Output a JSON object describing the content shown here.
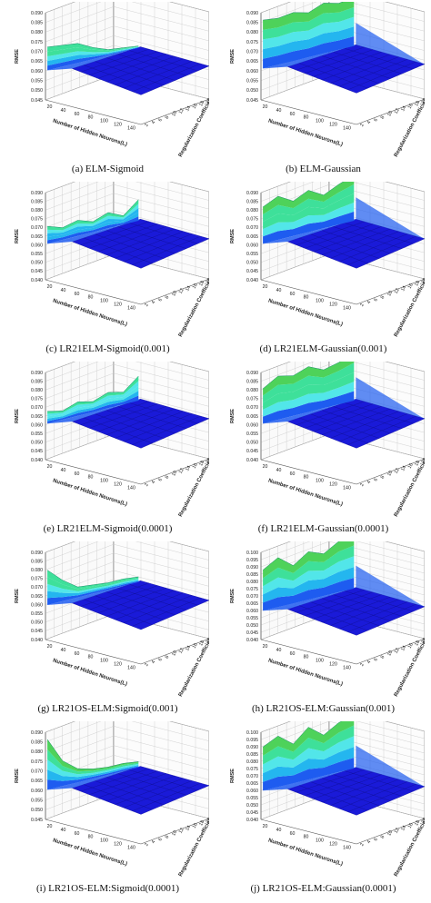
{
  "figure": {
    "panels": [
      {
        "id": "a",
        "caption": "(a) ELM-Sigmoid"
      },
      {
        "id": "b",
        "caption": "(b) ELM-Gaussian"
      },
      {
        "id": "c",
        "caption": "(c) LR21ELM-Sigmoid(0.001)"
      },
      {
        "id": "d",
        "caption": "(d) LR21ELM-Gaussian(0.001)"
      },
      {
        "id": "e",
        "caption": "(e) LR21ELM-Sigmoid(0.0001)"
      },
      {
        "id": "f",
        "caption": "(f) LR21ELM-Gaussian(0.0001)"
      },
      {
        "id": "g",
        "caption": "(g) LR21OS-ELM:Sigmoid(0.001)"
      },
      {
        "id": "h",
        "caption": "(h) LR21OS-ELM:Gaussian(0.001)"
      },
      {
        "id": "i",
        "caption": "(i) LR21OS-ELM:Sigmoid(0.0001)"
      },
      {
        "id": "j",
        "caption": "(j) LR21OS-ELM:Gaussian(0.0001)"
      }
    ]
  },
  "chart_data": [
    {
      "type": "surface",
      "kind": "sigmoid",
      "zlabel": "RMSE",
      "xlabel": "Number of Hidden Neurons(L)",
      "ylabel": "Regularization Coefficient(L)",
      "x_ticks": [
        "20",
        "40",
        "60",
        "80",
        "100",
        "120",
        "140"
      ],
      "y_ticks": [
        "2",
        "4",
        "6",
        "8",
        "10",
        "12",
        "14",
        "16",
        "18",
        "20"
      ],
      "z_ticks": [
        "0.045",
        "0.050",
        "0.055",
        "0.060",
        "0.065",
        "0.070",
        "0.075",
        "0.080",
        "0.085",
        "0.090"
      ],
      "zlim": [
        0.045,
        0.09
      ],
      "x_values": [
        20,
        40,
        60,
        80,
        100,
        120,
        140
      ],
      "profile": [
        0.074,
        0.073,
        0.072,
        0.068,
        0.065,
        0.064,
        0.063
      ],
      "peak": 0.084,
      "floor": 0.062
    },
    {
      "type": "surface",
      "kind": "gaussian",
      "zlabel": "RMSE",
      "xlabel": "Number of Hidden Neurons(L)",
      "ylabel": "Regularization Coefficient(L)",
      "x_ticks": [
        "20",
        "40",
        "60",
        "80",
        "100",
        "120",
        "140"
      ],
      "y_ticks": [
        "2",
        "4",
        "6",
        "8",
        "10",
        "12",
        "14",
        "16",
        "18",
        "20"
      ],
      "z_ticks": [
        "0.045",
        "0.050",
        "0.055",
        "0.060",
        "0.065",
        "0.070",
        "0.075",
        "0.080",
        "0.085",
        "0.090"
      ],
      "zlim": [
        0.045,
        0.09
      ],
      "x_values": [
        20,
        40,
        60,
        80,
        100,
        120,
        140
      ],
      "profile": [
        0.088,
        0.087,
        0.088,
        0.086,
        0.089,
        0.087,
        0.088
      ],
      "peak": 0.09,
      "floor": 0.063
    },
    {
      "type": "surface",
      "kind": "sigmoid",
      "zlabel": "RMSE",
      "xlabel": "Number of Hidden Neurons(L)",
      "ylabel": "Regularization Coefficient(L)",
      "x_ticks": [
        "20",
        "40",
        "60",
        "80",
        "100",
        "120",
        "140"
      ],
      "y_ticks": [
        "2",
        "4",
        "6",
        "8",
        "10",
        "12",
        "14",
        "16",
        "18",
        "20"
      ],
      "z_ticks": [
        "0.040",
        "0.045",
        "0.050",
        "0.055",
        "0.060",
        "0.065",
        "0.070",
        "0.075",
        "0.080",
        "0.085",
        "0.090"
      ],
      "zlim": [
        0.04,
        0.09
      ],
      "x_values": [
        20,
        40,
        60,
        80,
        100,
        120,
        140
      ],
      "profile": [
        0.073,
        0.07,
        0.072,
        0.069,
        0.072,
        0.068,
        0.075
      ],
      "peak": 0.078,
      "floor": 0.063
    },
    {
      "type": "surface",
      "kind": "gaussian",
      "zlabel": "RMSE",
      "xlabel": "Number of Hidden Neurons(L)",
      "ylabel": "Regularization Coefficient(L)",
      "x_ticks": [
        "20",
        "40",
        "60",
        "80",
        "100",
        "120",
        "140"
      ],
      "y_ticks": [
        "2",
        "4",
        "6",
        "8",
        "10",
        "12",
        "14",
        "16",
        "18",
        "20"
      ],
      "z_ticks": [
        "0.040",
        "0.045",
        "0.050",
        "0.055",
        "0.060",
        "0.065",
        "0.070",
        "0.075",
        "0.080",
        "0.085",
        "0.090"
      ],
      "zlim": [
        0.04,
        0.09
      ],
      "x_values": [
        20,
        40,
        60,
        80,
        100,
        120,
        140
      ],
      "profile": [
        0.084,
        0.088,
        0.083,
        0.087,
        0.082,
        0.086,
        0.089
      ],
      "peak": 0.09,
      "floor": 0.063
    },
    {
      "type": "surface",
      "kind": "sigmoid",
      "zlabel": "RMSE",
      "xlabel": "Number of Hidden Neurons(L)",
      "ylabel": "Regularization Coefficient(L)",
      "x_ticks": [
        "20",
        "40",
        "60",
        "80",
        "100",
        "120",
        "140"
      ],
      "y_ticks": [
        "2",
        "4",
        "6",
        "8",
        "10",
        "12",
        "14",
        "16",
        "18",
        "20"
      ],
      "z_ticks": [
        "0.040",
        "0.045",
        "0.050",
        "0.055",
        "0.060",
        "0.065",
        "0.070",
        "0.075",
        "0.080",
        "0.085",
        "0.090"
      ],
      "zlim": [
        0.04,
        0.09
      ],
      "x_values": [
        20,
        40,
        60,
        80,
        100,
        120,
        140
      ],
      "profile": [
        0.07,
        0.068,
        0.071,
        0.069,
        0.072,
        0.07,
        0.077
      ],
      "peak": 0.079,
      "floor": 0.063
    },
    {
      "type": "surface",
      "kind": "gaussian",
      "zlabel": "RMSE",
      "xlabel": "Number of Hidden Neurons(L)",
      "ylabel": "Regularization Coefficient(L)",
      "x_ticks": [
        "20",
        "40",
        "60",
        "80",
        "100",
        "120",
        "140"
      ],
      "y_ticks": [
        "2",
        "4",
        "6",
        "8",
        "10",
        "12",
        "14",
        "16",
        "18",
        "20"
      ],
      "z_ticks": [
        "0.040",
        "0.045",
        "0.050",
        "0.055",
        "0.060",
        "0.065",
        "0.070",
        "0.075",
        "0.080",
        "0.085",
        "0.090"
      ],
      "zlim": [
        0.04,
        0.09
      ],
      "x_values": [
        20,
        40,
        60,
        80,
        100,
        120,
        140
      ],
      "profile": [
        0.083,
        0.088,
        0.086,
        0.089,
        0.085,
        0.087,
        0.09
      ],
      "peak": 0.09,
      "floor": 0.063
    },
    {
      "type": "surface",
      "kind": "sigmoid",
      "zlabel": "RMSE",
      "xlabel": "Number of Hidden Neurons(L)",
      "ylabel": "Regularization Coefficient(L)",
      "x_ticks": [
        "20",
        "40",
        "60",
        "80",
        "100",
        "120",
        "140"
      ],
      "y_ticks": [
        "2",
        "4",
        "6",
        "8",
        "10",
        "12",
        "14",
        "16",
        "18",
        "20"
      ],
      "z_ticks": [
        "0.040",
        "0.045",
        "0.050",
        "0.055",
        "0.060",
        "0.065",
        "0.070",
        "0.075",
        "0.080",
        "0.085",
        "0.090"
      ],
      "zlim": [
        0.04,
        0.09
      ],
      "x_values": [
        20,
        40,
        60,
        80,
        100,
        120,
        140
      ],
      "profile": [
        0.082,
        0.074,
        0.068,
        0.067,
        0.066,
        0.066,
        0.065
      ],
      "peak": 0.082,
      "floor": 0.062
    },
    {
      "type": "surface",
      "kind": "gaussian",
      "zlabel": "RMSE",
      "xlabel": "Number of Hidden Neurons(L)",
      "ylabel": "Regularization Coefficient(L)",
      "x_ticks": [
        "20",
        "40",
        "60",
        "80",
        "100",
        "120",
        "140"
      ],
      "y_ticks": [
        "2",
        "4",
        "6",
        "8",
        "10",
        "12",
        "14",
        "16",
        "18",
        "20"
      ],
      "z_ticks": [
        "0.040",
        "0.045",
        "0.050",
        "0.055",
        "0.060",
        "0.065",
        "0.070",
        "0.075",
        "0.080",
        "0.085",
        "0.090",
        "0.095",
        "0.100"
      ],
      "zlim": [
        0.04,
        0.1
      ],
      "x_values": [
        20,
        40,
        60,
        80,
        100,
        120,
        140
      ],
      "profile": [
        0.09,
        0.096,
        0.088,
        0.095,
        0.091,
        0.097,
        0.099
      ],
      "peak": 0.1,
      "floor": 0.062
    },
    {
      "type": "surface",
      "kind": "sigmoid",
      "zlabel": "RMSE",
      "xlabel": "Number of Hidden Neurons(L)",
      "ylabel": "Regularization Coefficient(L)",
      "x_ticks": [
        "20",
        "40",
        "60",
        "80",
        "100",
        "120",
        "140"
      ],
      "y_ticks": [
        "2",
        "4",
        "6",
        "8",
        "10",
        "12",
        "14",
        "16",
        "18",
        "20"
      ],
      "z_ticks": [
        "0.045",
        "0.050",
        "0.055",
        "0.060",
        "0.065",
        "0.070",
        "0.075",
        "0.080",
        "0.085",
        "0.090"
      ],
      "zlim": [
        0.045,
        0.09
      ],
      "x_values": [
        20,
        40,
        60,
        80,
        100,
        120,
        140
      ],
      "profile": [
        0.088,
        0.075,
        0.069,
        0.067,
        0.066,
        0.066,
        0.065
      ],
      "peak": 0.088,
      "floor": 0.062
    },
    {
      "type": "surface",
      "kind": "gaussian",
      "zlabel": "RMSE",
      "xlabel": "Number of Hidden Neurons(L)",
      "ylabel": "Regularization Coefficient(L)",
      "x_ticks": [
        "20",
        "40",
        "60",
        "80",
        "100",
        "120",
        "140"
      ],
      "y_ticks": [
        "2",
        "4",
        "6",
        "8",
        "10",
        "12",
        "14",
        "16",
        "18",
        "20"
      ],
      "z_ticks": [
        "0.040",
        "0.045",
        "0.050",
        "0.055",
        "0.060",
        "0.065",
        "0.070",
        "0.075",
        "0.080",
        "0.085",
        "0.090",
        "0.095",
        "0.100"
      ],
      "zlim": [
        0.04,
        0.1
      ],
      "x_values": [
        20,
        40,
        60,
        80,
        100,
        120,
        140
      ],
      "profile": [
        0.092,
        0.097,
        0.089,
        0.098,
        0.09,
        0.096,
        0.099
      ],
      "peak": 0.1,
      "floor": 0.062
    }
  ],
  "colors": {
    "floor": "#1a1ad8",
    "band1": "#1e5cf0",
    "band2": "#24b6ef",
    "band3": "#52e6e9",
    "band4": "#3ee09a",
    "band5": "#4ed25a",
    "grid": "#c8c8c8",
    "axis": "#555555"
  }
}
